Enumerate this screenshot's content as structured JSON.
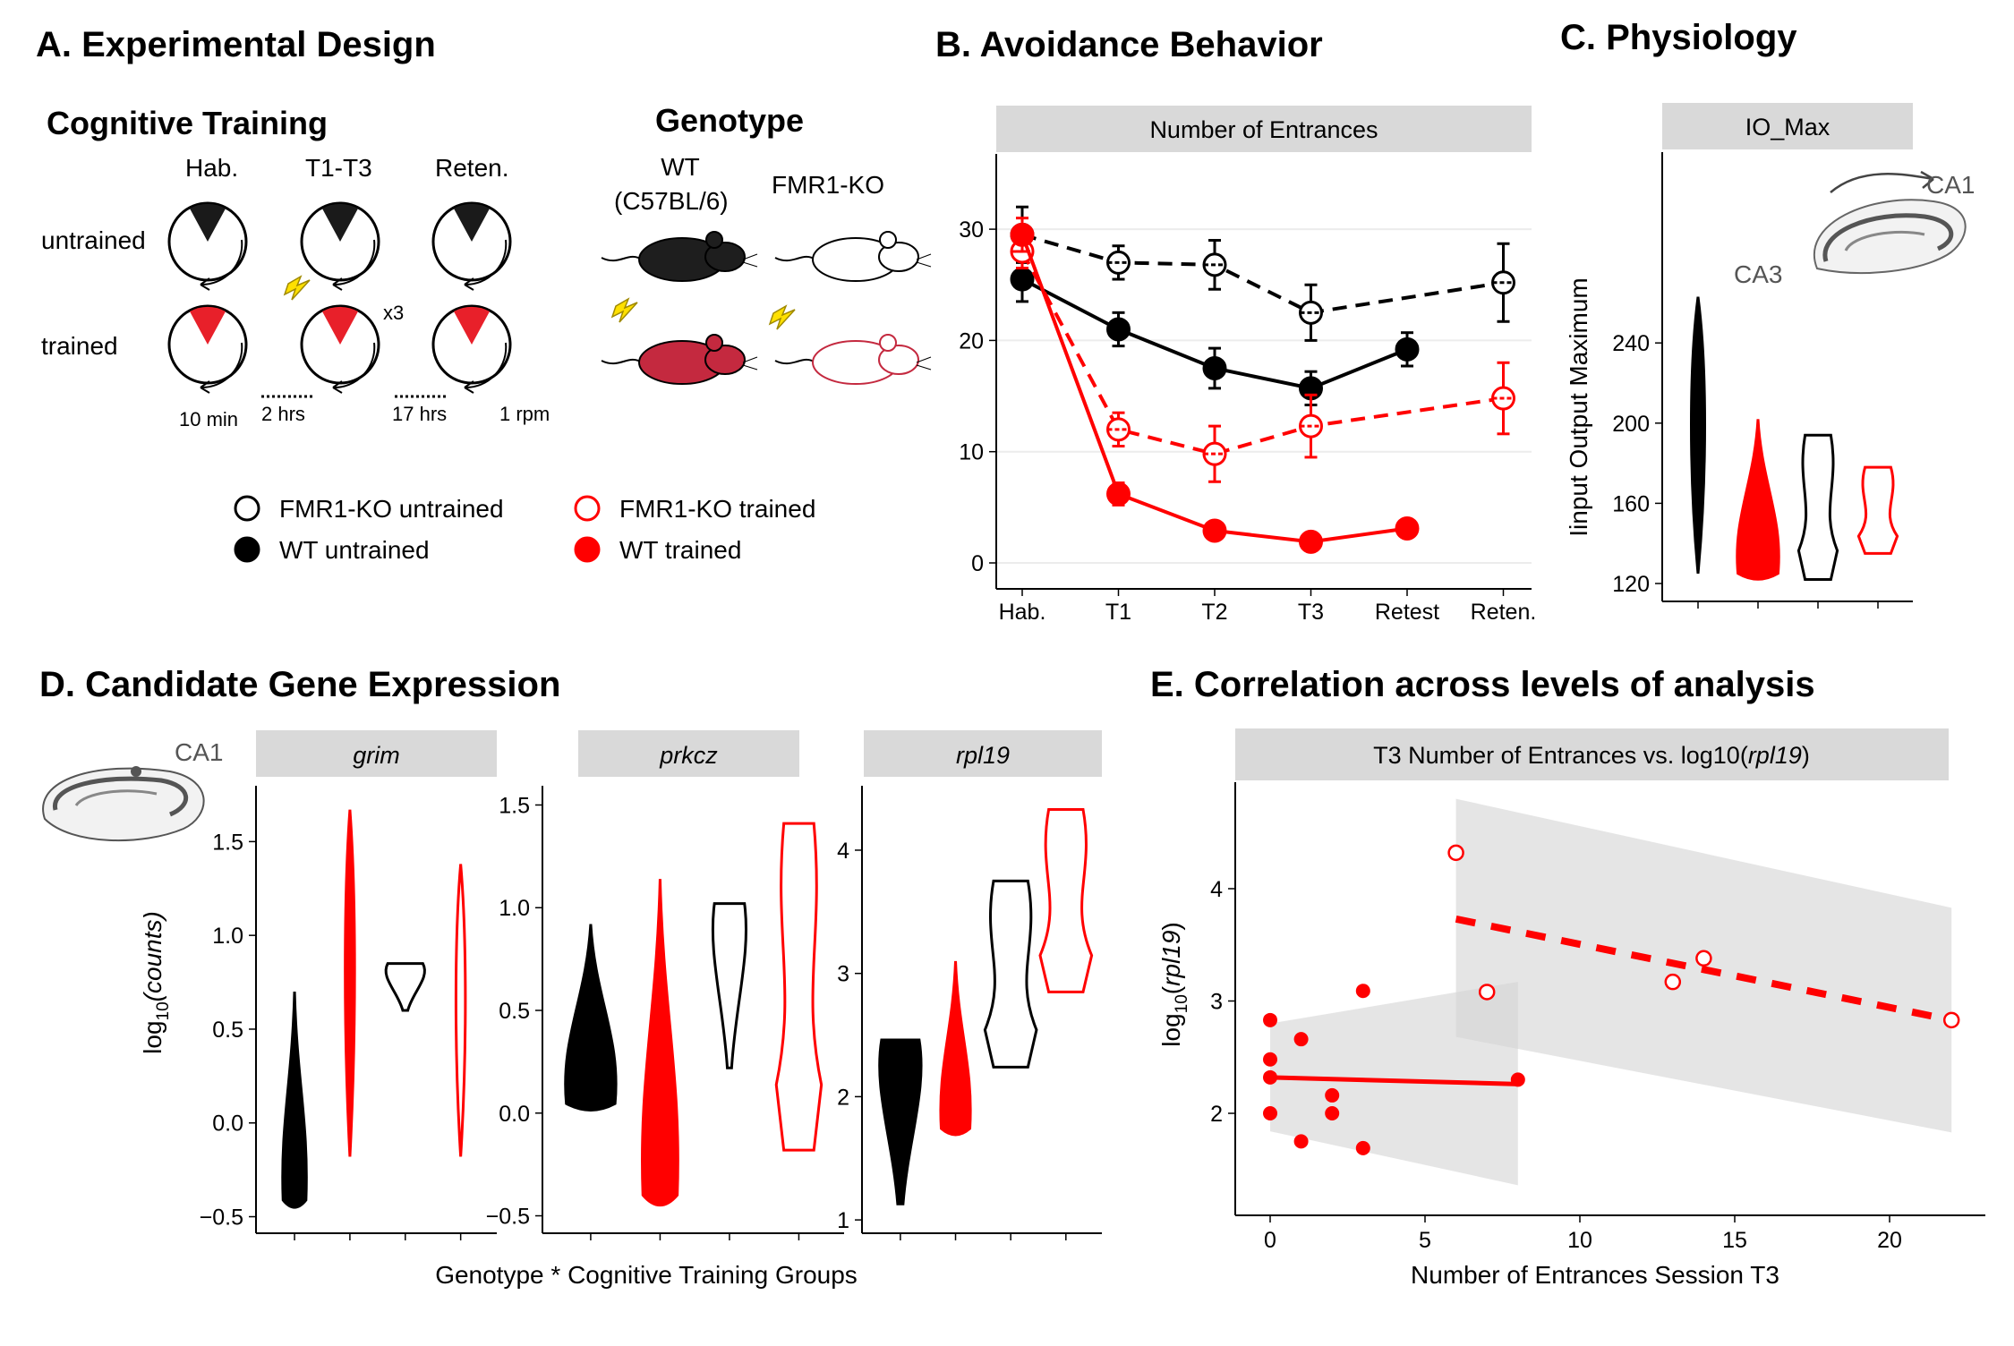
{
  "colors": {
    "wt_untrained": "#000000",
    "ko_untrained": "#000000",
    "wt_trained": "#ff0000",
    "ko_trained": "#ff0000",
    "strip": "#d9d9d9",
    "band": "#e6e6e6"
  },
  "panelA": {
    "title": "A. Experimental Design",
    "cognitive_title": "Cognitive Training",
    "sessions": [
      "Hab.",
      "T1-T3",
      "Reten."
    ],
    "rows": [
      "untrained",
      "trained"
    ],
    "x3": "x3",
    "times": [
      "10 min",
      "2 hrs",
      "17 hrs",
      "1 rpm"
    ],
    "genotype_title": "Genotype",
    "genotypes": [
      "WT\n(C57BL/6)",
      "FMR1-KO"
    ],
    "legend": [
      {
        "label": "FMR1-KO untrained",
        "color": "#000000",
        "filled": false
      },
      {
        "label": "FMR1-KO trained",
        "color": "#ff0000",
        "filled": false
      },
      {
        "label": "WT untrained",
        "color": "#000000",
        "filled": true
      },
      {
        "label": "WT trained",
        "color": "#ff0000",
        "filled": true
      }
    ]
  },
  "panelB": {
    "title": "B. Avoidance Behavior",
    "strip": "Number of Entrances",
    "chart_data": {
      "type": "line",
      "categories": [
        "Hab.",
        "T1",
        "T2",
        "T3",
        "Retest",
        "Reten."
      ],
      "ylim": [
        0,
        33
      ],
      "yticks": [
        0,
        10,
        20,
        30
      ],
      "series": [
        {
          "name": "FMR1-KO untrained",
          "color": "#000000",
          "filled": false,
          "dashed": true,
          "x": [
            0,
            1,
            2,
            3,
            5
          ],
          "values": [
            29.5,
            27,
            26.8,
            22.5,
            25.2
          ],
          "err": [
            2.5,
            1.5,
            2.2,
            2.5,
            3.5
          ]
        },
        {
          "name": "WT untrained",
          "color": "#000000",
          "filled": true,
          "dashed": false,
          "x": [
            0,
            1,
            2,
            3,
            4
          ],
          "values": [
            25.5,
            21,
            17.5,
            15.7,
            19.2
          ],
          "err": [
            2,
            1.5,
            1.8,
            1.5,
            1.5
          ]
        },
        {
          "name": "FMR1-KO trained",
          "color": "#ff0000",
          "filled": false,
          "dashed": true,
          "x": [
            0,
            1,
            2,
            3,
            5
          ],
          "values": [
            28,
            12,
            9.8,
            12.3,
            14.8
          ],
          "err": [
            1.5,
            1.5,
            2.5,
            2.8,
            3.2
          ]
        },
        {
          "name": "WT trained",
          "color": "#ff0000",
          "filled": true,
          "dashed": false,
          "x": [
            0,
            1,
            2,
            3,
            4
          ],
          "values": [
            29.5,
            6.2,
            2.9,
            1.9,
            3.1
          ],
          "err": [
            1.5,
            1,
            0.5,
            0.4,
            0.5
          ]
        }
      ]
    }
  },
  "panelC": {
    "title": "C. Physiology",
    "strip": "IO_Max",
    "ylabel": "Iinput Output Maximum",
    "ca1": "CA1",
    "ca3": "CA3",
    "chart_data": {
      "type": "violin",
      "ylim": [
        118,
        270
      ],
      "yticks": [
        120,
        160,
        200,
        240
      ],
      "groups": [
        {
          "color": "#000000",
          "filled": true,
          "min": 125,
          "max": 263
        },
        {
          "color": "#ff0000",
          "filled": true,
          "min": 121,
          "max": 202
        },
        {
          "color": "#000000",
          "filled": false,
          "min": 122,
          "max": 194
        },
        {
          "color": "#ff0000",
          "filled": false,
          "min": 135,
          "max": 178
        }
      ]
    }
  },
  "panelD": {
    "title": "D. Candidate Gene Expression",
    "ca1": "CA1",
    "ylabel_prefix": "log",
    "ylabel_sub": "10",
    "ylabel_suffix": "(counts)",
    "xlabel": "Genotype * Cognitive Training Groups",
    "chart_data": [
      {
        "gene": "grim",
        "ylim": [
          -0.55,
          1.75
        ],
        "yticks": [
          -0.5,
          0.0,
          0.5,
          1.0,
          1.5
        ],
        "ytick_labels": [
          "−0.5",
          "0.0",
          "0.5",
          "1.0",
          "1.5"
        ],
        "groups": [
          {
            "color": "#000000",
            "filled": true,
            "min": -0.47,
            "max": 0.7
          },
          {
            "color": "#ff0000",
            "filled": true,
            "min": -0.18,
            "max": 1.67
          },
          {
            "color": "#000000",
            "filled": false,
            "min": 0.6,
            "max": 0.85
          },
          {
            "color": "#ff0000",
            "filled": false,
            "min": -0.18,
            "max": 1.38
          }
        ]
      },
      {
        "gene": "prkcz",
        "ylim": [
          -0.55,
          1.55
        ],
        "yticks": [
          -0.5,
          0.0,
          0.5,
          1.0,
          1.5
        ],
        "ytick_labels": [
          "−0.5",
          "0.0",
          "0.5",
          "1.0",
          "1.5"
        ],
        "groups": [
          {
            "color": "#000000",
            "filled": true,
            "min": 0,
            "max": 0.92
          },
          {
            "color": "#ff0000",
            "filled": true,
            "min": -0.48,
            "max": 1.14
          },
          {
            "color": "#000000",
            "filled": false,
            "min": 0.22,
            "max": 1.02
          },
          {
            "color": "#ff0000",
            "filled": false,
            "min": -0.18,
            "max": 1.41
          }
        ]
      },
      {
        "gene": "rpl19",
        "ylim": [
          0.95,
          4.45
        ],
        "yticks": [
          1,
          2,
          3,
          4
        ],
        "ytick_labels": [
          "1",
          "2",
          "3",
          "4"
        ],
        "groups": [
          {
            "color": "#000000",
            "filled": true,
            "min": 1.13,
            "max": 2.46
          },
          {
            "color": "#ff0000",
            "filled": true,
            "min": 1.67,
            "max": 3.1
          },
          {
            "color": "#000000",
            "filled": false,
            "min": 2.24,
            "max": 3.75
          },
          {
            "color": "#ff0000",
            "filled": false,
            "min": 2.85,
            "max": 4.33
          }
        ]
      }
    ]
  },
  "panelE": {
    "title": "E. Correlation across levels of analysis",
    "strip_main": "T3 Number of Entrances  vs. log10(",
    "strip_italic": "rpl19",
    "strip_end": ")",
    "ylabel_prefix": "log",
    "ylabel_sub": "10",
    "ylabel_mid": "(",
    "ylabel_italic": "rpl19",
    "ylabel_end": ")",
    "xlabel": "Number of Entrances Session T3",
    "chart_data": {
      "type": "scatter",
      "xlim": [
        -1,
        23
      ],
      "ylim": [
        1.25,
        4.75
      ],
      "xticks": [
        0,
        5,
        10,
        15,
        20
      ],
      "yticks": [
        2,
        3,
        4
      ],
      "filled_points": [
        [
          0,
          2.83
        ],
        [
          0,
          2.48
        ],
        [
          0,
          2.32
        ],
        [
          0,
          2.0
        ],
        [
          1,
          2.66
        ],
        [
          1,
          1.75
        ],
        [
          2,
          2.16
        ],
        [
          2,
          2.0
        ],
        [
          3,
          3.09
        ],
        [
          3,
          1.69
        ],
        [
          8,
          2.3
        ]
      ],
      "open_points": [
        [
          6,
          4.32
        ],
        [
          7,
          3.08
        ],
        [
          13,
          3.17
        ],
        [
          14,
          3.38
        ],
        [
          22,
          2.83
        ]
      ],
      "fit_filled": {
        "x": [
          0,
          8
        ],
        "y": [
          2.32,
          2.26
        ],
        "band_upper": [
          2.8,
          3.17
        ],
        "band_lower": [
          1.84,
          1.36
        ]
      },
      "fit_open": {
        "x": [
          6,
          22
        ],
        "y": [
          3.73,
          2.83
        ],
        "band_upper": [
          4.8,
          3.83
        ],
        "band_lower": [
          2.68,
          1.83
        ]
      }
    }
  }
}
